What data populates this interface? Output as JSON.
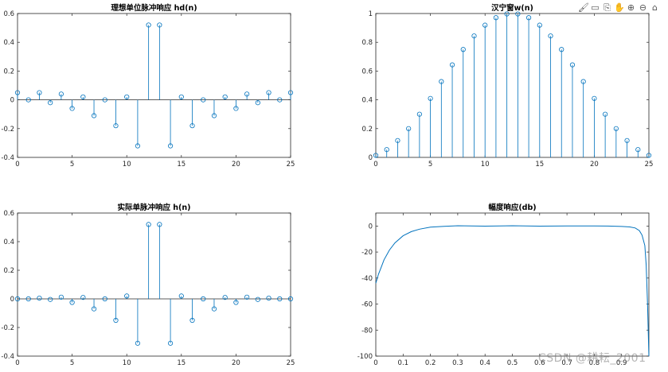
{
  "toolbar": {
    "icons": [
      "brush-icon",
      "data-tip-icon",
      "export-icon",
      "pan-icon",
      "zoom-in-icon",
      "zoom-out-icon",
      "home-icon"
    ],
    "glyphs": [
      "🖌",
      "▭",
      "⎘",
      "✋",
      "⊕",
      "⊖",
      "⌂"
    ]
  },
  "watermark": "CSDN @耕耘_2001",
  "colors": {
    "stem": "#0072bd",
    "axis": "#262626",
    "baseline": "#262626"
  },
  "chart_data": [
    {
      "type": "stem",
      "title": "理想单位脉冲响应 hd(n)",
      "xlim": [
        0,
        25
      ],
      "ylim": [
        -0.4,
        0.6
      ],
      "xticks": [
        0,
        5,
        10,
        15,
        20,
        25
      ],
      "yticks": [
        -0.4,
        -0.2,
        0,
        0.2,
        0.4,
        0.6
      ],
      "ytick_labels": [
        "-0.4",
        "-0.2",
        "0",
        "0.2",
        "0.4",
        "0.6"
      ],
      "x": [
        0,
        1,
        2,
        3,
        4,
        5,
        6,
        7,
        8,
        9,
        10,
        11,
        12,
        13,
        14,
        15,
        16,
        17,
        18,
        19,
        20,
        21,
        22,
        23,
        24,
        25
      ],
      "y": [
        0.05,
        0.0,
        0.05,
        -0.02,
        0.04,
        -0.06,
        0.02,
        -0.11,
        0.0,
        -0.18,
        0.02,
        -0.32,
        0.52,
        0.52,
        -0.32,
        0.02,
        -0.18,
        0.0,
        -0.11,
        0.02,
        -0.06,
        0.04,
        -0.02,
        0.05,
        0.0,
        0.05
      ]
    },
    {
      "type": "stem",
      "title": "汉宁窗w(n)",
      "xlim": [
        0,
        25
      ],
      "ylim": [
        0,
        1
      ],
      "xticks": [
        0,
        5,
        10,
        15,
        20,
        25
      ],
      "yticks": [
        0,
        0.2,
        0.4,
        0.6,
        0.8,
        1
      ],
      "ytick_labels": [
        "0",
        "0.2",
        "0.4",
        "0.6",
        "0.8",
        "1"
      ],
      "x": [
        0,
        1,
        2,
        3,
        4,
        5,
        6,
        7,
        8,
        9,
        10,
        11,
        12,
        13,
        14,
        15,
        16,
        17,
        18,
        19,
        20,
        21,
        22,
        23,
        24,
        25
      ],
      "y": [
        0.014,
        0.054,
        0.117,
        0.2,
        0.3,
        0.41,
        0.527,
        0.643,
        0.75,
        0.844,
        0.919,
        0.971,
        0.997,
        0.997,
        0.971,
        0.919,
        0.844,
        0.75,
        0.643,
        0.527,
        0.41,
        0.3,
        0.2,
        0.117,
        0.054,
        0.014
      ]
    },
    {
      "type": "stem",
      "title": "实际单脉冲响应 h(n)",
      "xlim": [
        0,
        25
      ],
      "ylim": [
        -0.4,
        0.6
      ],
      "xticks": [
        0,
        5,
        10,
        15,
        20,
        25
      ],
      "yticks": [
        -0.4,
        -0.2,
        0,
        0.2,
        0.4,
        0.6
      ],
      "ytick_labels": [
        "-0.4",
        "-0.2",
        "0",
        "0.2",
        "0.4",
        "0.6"
      ],
      "x": [
        0,
        1,
        2,
        3,
        4,
        5,
        6,
        7,
        8,
        9,
        10,
        11,
        12,
        13,
        14,
        15,
        16,
        17,
        18,
        19,
        20,
        21,
        22,
        23,
        24,
        25
      ],
      "y": [
        0.0,
        0.0,
        0.005,
        -0.004,
        0.012,
        -0.025,
        0.01,
        -0.07,
        0.0,
        -0.15,
        0.02,
        -0.31,
        0.52,
        0.52,
        -0.31,
        0.02,
        -0.15,
        0.0,
        -0.07,
        0.01,
        -0.025,
        0.012,
        -0.004,
        0.005,
        0.0,
        0.0
      ]
    },
    {
      "type": "line",
      "title": "幅度响应(db)",
      "xlim": [
        0,
        1
      ],
      "ylim": [
        -100,
        10
      ],
      "xticks": [
        0,
        0.1,
        0.2,
        0.3,
        0.4,
        0.5,
        0.6,
        0.7,
        0.8,
        0.9
      ],
      "xtick_labels": [
        "0",
        "0.1",
        "0.2",
        "0.3",
        "0.4",
        "0.5",
        "0.6",
        "0.7",
        "0.8",
        "0.9"
      ],
      "yticks": [
        -100,
        -80,
        -60,
        -40,
        -20,
        0
      ],
      "ytick_labels": [
        "-100",
        "-80",
        "-60",
        "-40",
        "-20",
        "0"
      ],
      "x": [
        0,
        0.01,
        0.02,
        0.03,
        0.05,
        0.07,
        0.1,
        0.13,
        0.16,
        0.2,
        0.25,
        0.3,
        0.4,
        0.5,
        0.6,
        0.7,
        0.8,
        0.85,
        0.9,
        0.93,
        0.95,
        0.965,
        0.975,
        0.985,
        0.99,
        0.995,
        1.0
      ],
      "y": [
        -44,
        -37,
        -31.5,
        -26,
        -18.5,
        -13,
        -7.5,
        -4.3,
        -2.4,
        -0.8,
        -0.2,
        0.2,
        -0.1,
        0.2,
        -0.1,
        0.1,
        0.1,
        0.0,
        -0.3,
        -0.7,
        -1.5,
        -3.5,
        -7,
        -15,
        -30,
        -60,
        -100
      ]
    }
  ]
}
